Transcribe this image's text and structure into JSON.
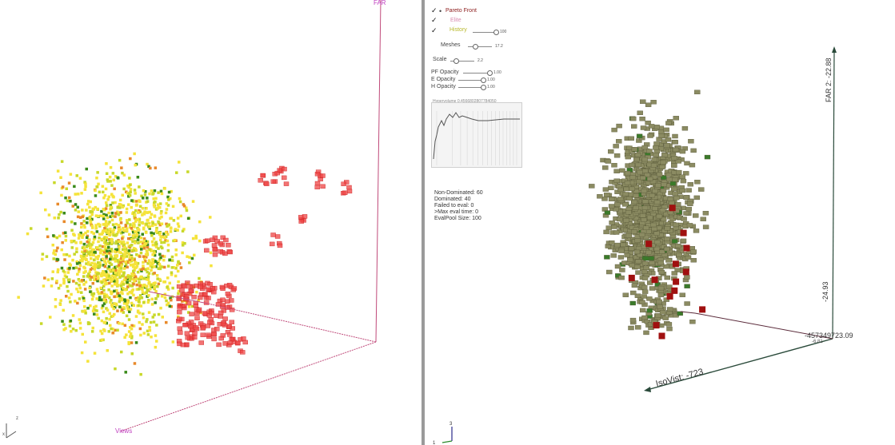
{
  "left_view": {
    "axis_far_label": "FAR",
    "axis_views_label": "Views",
    "gizmo": {
      "z": "z",
      "x": "x"
    },
    "colors": {
      "history_low": "#f5e33a",
      "history_mid": "#c8d82a",
      "history_green": "#3a8a1a",
      "history_orange": "#e8892a",
      "pareto": "#ef4444",
      "axis": "#c04a7a"
    }
  },
  "right_view": {
    "legend": {
      "pareto_front": "Pareto Front",
      "elite": "Elite",
      "history": "History",
      "history_value": "100"
    },
    "meshes": {
      "label": "Meshes",
      "value": "17.2"
    },
    "scale": {
      "label": "Scale",
      "value": "2.2"
    },
    "opacity": [
      {
        "label": "PF Opacity",
        "value": "1.00"
      },
      {
        "label": "E Opacity",
        "value": "1.00"
      },
      {
        "label": "H Opacity",
        "value": "1.00"
      }
    ],
    "hypervolume_label": "Hypervolume 0.4566802807784050",
    "stats": [
      "Non-Dominated: 60",
      "Dominated: 40",
      "Failed to eval: 0",
      ">Max eval time: 0",
      "EvalPool Size: 100"
    ],
    "axis_far2_top": "FAR 2: -22.88",
    "axis_far2_bottom": "-24.93",
    "axis_isovist": "IsoVist: -723",
    "axis_right_value": "-457349723.09",
    "axis_right_value2": "-6.81",
    "gizmo": {
      "z": "3",
      "x": "1"
    },
    "colors": {
      "history": "#8b8b62",
      "pareto": "#a01010",
      "green": "#3a7a2a",
      "axis": "#2a4a3a",
      "legend_pareto": "#8b1a1a",
      "legend_elite": "#d98cb0",
      "legend_history": "#c8c83a"
    }
  }
}
